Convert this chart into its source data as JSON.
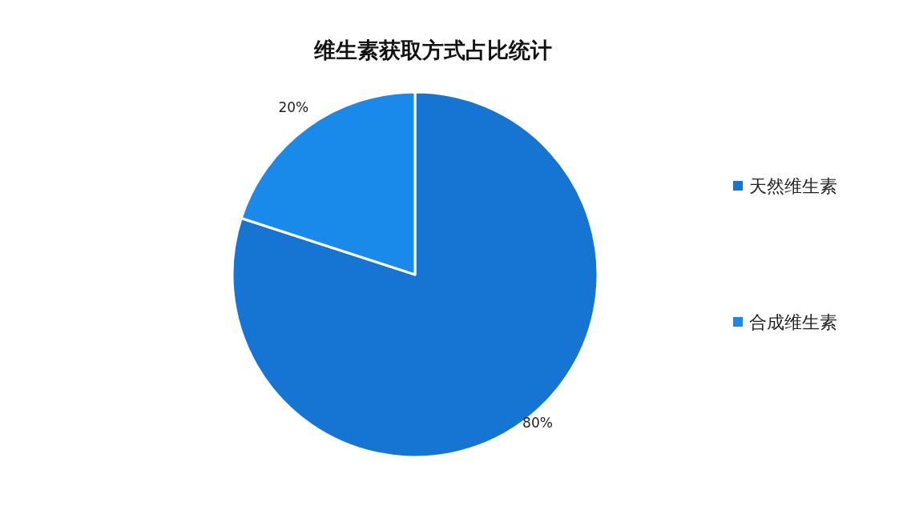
{
  "chart_data": {
    "type": "pie",
    "title": "维生素获取方式占比统计",
    "categories": [
      "天然维生素",
      "合成维生素"
    ],
    "values": [
      80,
      20
    ],
    "colors": [
      "#1674d2",
      "#1a8aea"
    ],
    "value_labels": [
      "80%",
      "20%"
    ],
    "legend": "right"
  }
}
